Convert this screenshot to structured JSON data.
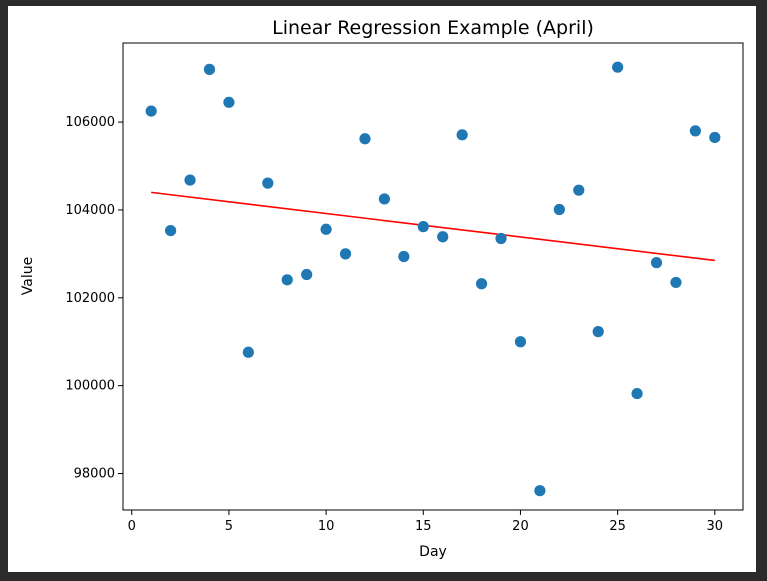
{
  "chart_data": {
    "type": "scatter",
    "title": "Linear Regression Example (April)",
    "xlabel": "Day",
    "ylabel": "Value",
    "xlim": [
      -0.45,
      31.45
    ],
    "ylim": [
      97170,
      107800
    ],
    "xticks": [
      0,
      5,
      10,
      15,
      20,
      25,
      30
    ],
    "yticks": [
      98000,
      100000,
      102000,
      104000,
      106000
    ],
    "x": [
      1,
      2,
      3,
      4,
      5,
      6,
      7,
      8,
      9,
      10,
      11,
      12,
      13,
      14,
      15,
      16,
      17,
      18,
      19,
      20,
      21,
      22,
      23,
      24,
      25,
      26,
      27,
      28,
      29,
      30
    ],
    "y": [
      106250,
      103530,
      104680,
      107200,
      106450,
      100760,
      104610,
      102410,
      102530,
      103560,
      103000,
      105620,
      104250,
      102940,
      103620,
      103390,
      105710,
      102320,
      103350,
      101000,
      97610,
      104010,
      104450,
      101230,
      107250,
      99820,
      102800,
      102350,
      105800,
      105650
    ],
    "regression": {
      "x": [
        1,
        30
      ],
      "y": [
        104400,
        102850
      ]
    },
    "colors": {
      "points": "#1f77b4",
      "regression": "#ff0000"
    },
    "grid": false,
    "legend": "none"
  }
}
